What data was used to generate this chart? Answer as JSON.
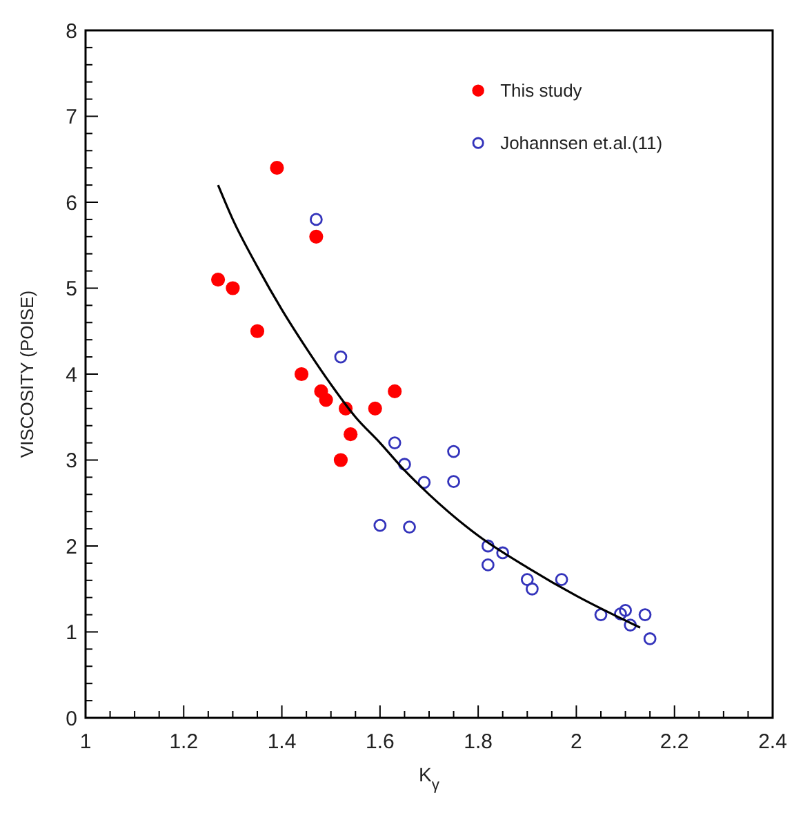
{
  "chart_data": {
    "type": "scatter",
    "xlabel": "K$_{γ}$",
    "ylabel": "VISCOSITY (POISE)",
    "xlim": [
      1,
      2.4
    ],
    "ylim": [
      0,
      8
    ],
    "xticks": [
      1,
      {
        "value": 1.05,
        "label": null
      },
      {
        "value": 1.1,
        "label": null
      },
      {
        "value": 1.15,
        "label": null
      },
      1.2,
      {
        "value": 1.25,
        "label": null
      },
      {
        "value": 1.3,
        "label": null
      },
      {
        "value": 1.35,
        "label": null
      },
      1.4,
      {
        "value": 1.45,
        "label": null
      },
      {
        "value": 1.5,
        "label": null
      },
      {
        "value": 1.55,
        "label": null
      },
      1.6,
      {
        "value": 1.65,
        "label": null
      },
      {
        "value": 1.7,
        "label": null
      },
      {
        "value": 1.75,
        "label": null
      },
      1.8,
      {
        "value": 1.85,
        "label": null
      },
      {
        "value": 1.9,
        "label": null
      },
      {
        "value": 1.95,
        "label": null
      },
      2,
      {
        "value": 2.05,
        "label": null
      },
      {
        "value": 2.1,
        "label": null
      },
      {
        "value": 2.15,
        "label": null
      },
      2.2,
      {
        "value": 2.25,
        "label": null
      },
      {
        "value": 2.3,
        "label": null
      },
      {
        "value": 2.35,
        "label": null
      },
      2.4
    ],
    "yticks": [
      0,
      {
        "value": 0.2,
        "label": null
      },
      {
        "value": 0.4,
        "label": null
      },
      {
        "value": 0.6,
        "label": null
      },
      {
        "value": 0.8,
        "label": null
      },
      1,
      {
        "value": 1.2,
        "label": null
      },
      {
        "value": 1.4,
        "label": null
      },
      {
        "value": 1.6,
        "label": null
      },
      {
        "value": 1.8,
        "label": null
      },
      2,
      {
        "value": 2.2,
        "label": null
      },
      {
        "value": 2.4,
        "label": null
      },
      {
        "value": 2.6,
        "label": null
      },
      {
        "value": 2.8,
        "label": null
      },
      3,
      {
        "value": 3.2,
        "label": null
      },
      {
        "value": 3.4,
        "label": null
      },
      {
        "value": 3.6,
        "label": null
      },
      {
        "value": 3.8,
        "label": null
      },
      4,
      {
        "value": 4.2,
        "label": null
      },
      {
        "value": 4.4,
        "label": null
      },
      {
        "value": 4.6,
        "label": null
      },
      {
        "value": 4.8,
        "label": null
      },
      5,
      {
        "value": 5.2,
        "label": null
      },
      {
        "value": 5.4,
        "label": null
      },
      {
        "value": 5.6,
        "label": null
      },
      {
        "value": 5.8,
        "label": null
      },
      6,
      {
        "value": 6.2,
        "label": null
      },
      {
        "value": 6.4,
        "label": null
      },
      {
        "value": 6.6,
        "label": null
      },
      {
        "value": 6.8,
        "label": null
      },
      7,
      {
        "value": 7.2,
        "label": null
      },
      {
        "value": 7.4,
        "label": null
      },
      {
        "value": 7.6,
        "label": null
      },
      {
        "value": 7.8,
        "label": null
      },
      8
    ],
    "grid": false,
    "legend": "top right",
    "marker": "circle",
    "series": [
      {
        "name": "This study",
        "color": "#ff0000",
        "x": [
          1.27,
          1.3,
          1.35,
          1.39,
          1.44,
          1.47,
          1.48,
          1.49,
          1.53,
          1.52,
          1.54,
          1.59,
          1.63
        ],
        "values": [
          5.1,
          5.0,
          4.5,
          6.4,
          4.0,
          5.6,
          3.8,
          3.7,
          3.6,
          3.0,
          3.3,
          3.6,
          3.8
        ]
      },
      {
        "name": "Johannsen et.al.(11)",
        "color": "#3333bb",
        "x": [
          1.47,
          1.52,
          1.63,
          1.65,
          1.69,
          1.75,
          1.75,
          1.6,
          1.66,
          1.82,
          1.85,
          1.82,
          1.9,
          1.91,
          1.97,
          2.05,
          2.09,
          2.1,
          2.11,
          2.14,
          2.15
        ],
        "values": [
          5.8,
          4.2,
          3.2,
          2.95,
          2.74,
          3.1,
          2.75,
          2.24,
          2.22,
          2.0,
          1.92,
          1.78,
          1.61,
          1.5,
          1.61,
          1.2,
          1.21,
          1.25,
          1.08,
          1.2,
          0.92
        ]
      },
      {
        "type": "line",
        "color": "#000000",
        "marker": "none",
        "x": [
          1.27,
          1.3,
          1.35,
          1.4,
          1.45,
          1.5,
          1.55,
          1.6,
          1.65,
          1.7,
          1.8,
          1.9,
          2.0,
          2.13
        ],
        "values": [
          6.2,
          5.8,
          5.25,
          4.75,
          4.3,
          3.88,
          3.5,
          3.2,
          2.88,
          2.6,
          2.12,
          1.75,
          1.42,
          1.05
        ]
      }
    ]
  }
}
